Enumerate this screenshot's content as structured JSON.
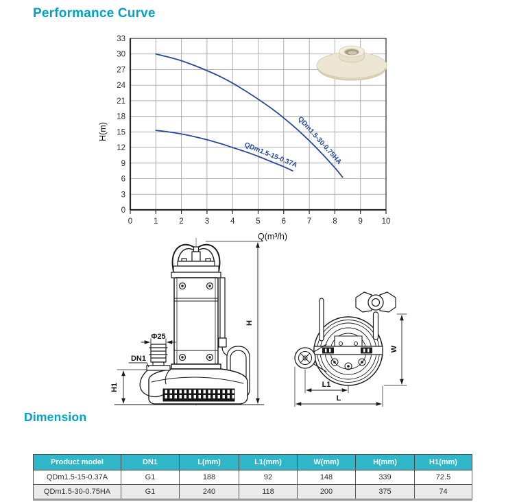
{
  "performance_section": {
    "title": "Performance Curve"
  },
  "chart_data": {
    "type": "line",
    "title": "",
    "xlabel": "Q(m³/h)",
    "ylabel": "H(m)",
    "xlim": [
      0,
      10
    ],
    "ylim": [
      0,
      33
    ],
    "xtick_step": 1,
    "ytick_step": 3,
    "grid": true,
    "legend_position": "labels-on-curves",
    "curve_color": "#24499e",
    "series": [
      {
        "name": "QDm1.5-30-0.75HA",
        "x": [
          1,
          1.5,
          2,
          2.5,
          3,
          3.5,
          4,
          4.5,
          5,
          5.5,
          6,
          6.5,
          7,
          7.5,
          8,
          8.3
        ],
        "y": [
          30,
          29.4,
          28.7,
          27.8,
          26.8,
          25.7,
          24.4,
          22.9,
          21.3,
          19.6,
          17.7,
          15.6,
          13.3,
          10.8,
          8.1,
          6.3
        ],
        "label_q": 7.35,
        "label_h": 13.1,
        "label_angle": 48
      },
      {
        "name": "QDm1.5-15-0.37A",
        "x": [
          1,
          1.5,
          2,
          2.5,
          3,
          3.5,
          4,
          4.5,
          5,
          5.5,
          6,
          6.35
        ],
        "y": [
          15.3,
          15.0,
          14.6,
          14.1,
          13.5,
          12.8,
          12.0,
          11.2,
          10.3,
          9.3,
          8.3,
          7.5
        ],
        "label_q": 5.47,
        "label_h": 10.2,
        "label_angle": 22
      }
    ]
  },
  "drawings": {
    "front_view": {
      "phi_label": "Φ25",
      "dn_label": "DN1",
      "h1_label": "H1",
      "h_label": "H"
    },
    "top_view": {
      "w_label": "W",
      "l1_label": "L1",
      "l_label": "L"
    }
  },
  "dimension_section": {
    "title": "Dimension",
    "table": {
      "headers": [
        "Product model",
        "DN1",
        "L(mm)",
        "L1(mm)",
        "W(mm)",
        "H(mm)",
        "H1(mm)"
      ],
      "rows": [
        [
          "QDm1.5-15-0.37A",
          "G1",
          "188",
          "92",
          "148",
          "339",
          "72.5"
        ],
        [
          "QDm1.5-30-0.75HA",
          "G1",
          "240",
          "118",
          "200",
          "375",
          "74"
        ]
      ]
    }
  },
  "colors": {
    "accent_teal": "#00a3c5",
    "table_header": "#2fb6c9",
    "row_alt": "#ebebeb",
    "curve_blue": "#24499e"
  }
}
